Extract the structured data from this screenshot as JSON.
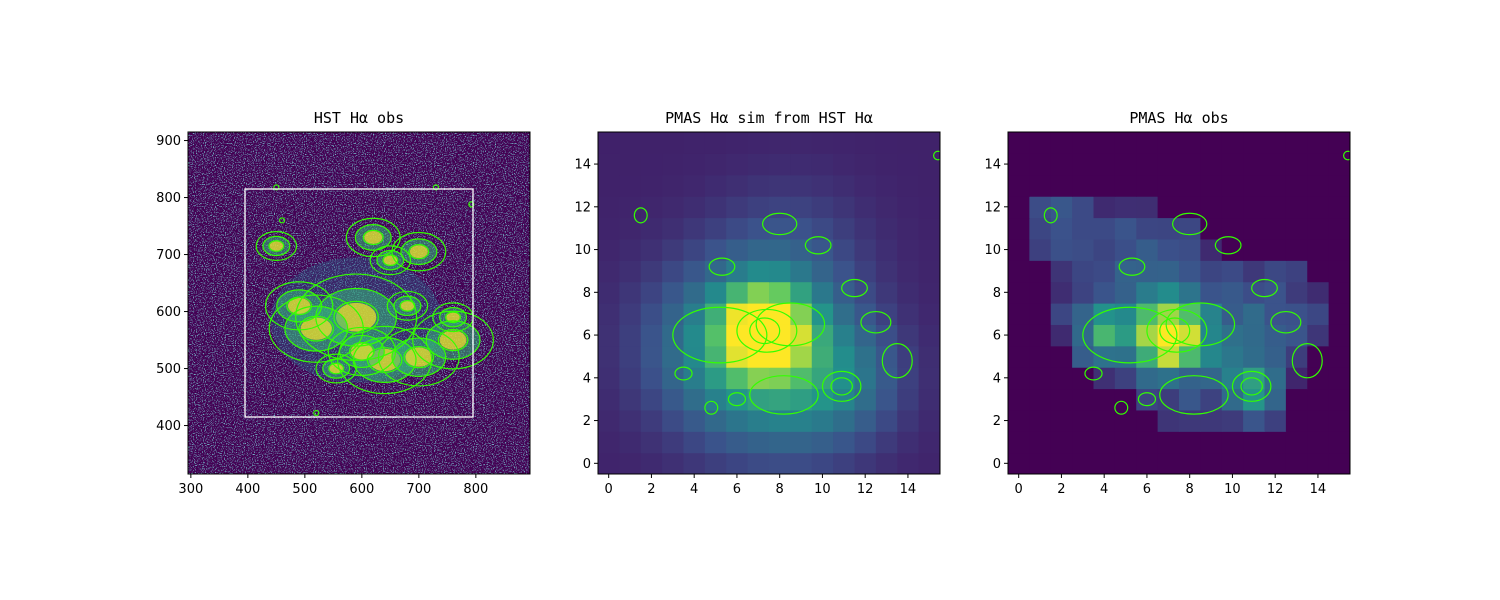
{
  "colors": {
    "contour": "#33ff00",
    "box": "#ffffff",
    "bg": "#440154"
  },
  "chart_data": [
    {
      "type": "heatmap",
      "title": "HST Hα obs",
      "xlabel": "",
      "ylabel": "",
      "xlim": [
        295,
        895
      ],
      "ylim": [
        315,
        915
      ],
      "xticks": [
        300,
        400,
        500,
        600,
        700,
        800
      ],
      "yticks": [
        400,
        500,
        600,
        700,
        800,
        900
      ],
      "grid": false,
      "overlay_box": {
        "x": [
          395,
          795
        ],
        "y": [
          415,
          815
        ]
      },
      "contour_peaks": [
        {
          "x": 590,
          "y": 590,
          "w": 9
        },
        {
          "x": 520,
          "y": 570,
          "w": 7
        },
        {
          "x": 640,
          "y": 515,
          "w": 7
        },
        {
          "x": 700,
          "y": 520,
          "w": 6
        },
        {
          "x": 760,
          "y": 550,
          "w": 6
        },
        {
          "x": 600,
          "y": 530,
          "w": 5
        },
        {
          "x": 490,
          "y": 610,
          "w": 5
        },
        {
          "x": 620,
          "y": 730,
          "w": 4
        },
        {
          "x": 700,
          "y": 705,
          "w": 4
        },
        {
          "x": 450,
          "y": 715,
          "w": 3
        },
        {
          "x": 650,
          "y": 690,
          "w": 3
        },
        {
          "x": 760,
          "y": 590,
          "w": 3
        },
        {
          "x": 680,
          "y": 610,
          "w": 3
        },
        {
          "x": 555,
          "y": 500,
          "w": 3
        }
      ]
    },
    {
      "type": "heatmap",
      "title": "PMAS Hα sim from HST Hα",
      "xlabel": "",
      "ylabel": "",
      "xlim": [
        -0.5,
        15.5
      ],
      "ylim": [
        -0.5,
        15.5
      ],
      "xticks": [
        0,
        2,
        4,
        6,
        8,
        10,
        12,
        14
      ],
      "yticks": [
        0,
        2,
        4,
        6,
        8,
        10,
        12,
        14
      ],
      "grid": false,
      "pixel_grid": [
        16,
        16
      ],
      "field_model": "smooth",
      "peaks": [
        {
          "x": 7.3,
          "y": 6.2,
          "a": 1.0,
          "s": 1.3
        },
        {
          "x": 5.5,
          "y": 5.5,
          "a": 0.35,
          "s": 2.8
        },
        {
          "x": 8.5,
          "y": 4.0,
          "a": 0.3,
          "s": 2.8
        },
        {
          "x": 11.0,
          "y": 4.0,
          "a": 0.18,
          "s": 2.0
        },
        {
          "x": 8.5,
          "y": 9.5,
          "a": 0.16,
          "s": 2.5
        }
      ]
    },
    {
      "type": "heatmap",
      "title": "PMAS Hα obs",
      "xlabel": "",
      "ylabel": "",
      "xlim": [
        -0.5,
        15.5
      ],
      "ylim": [
        -0.5,
        15.5
      ],
      "xticks": [
        0,
        2,
        4,
        6,
        8,
        10,
        12,
        14
      ],
      "yticks": [
        0,
        2,
        4,
        6,
        8,
        10,
        12,
        14
      ],
      "grid": false,
      "pixel_grid": [
        16,
        16
      ],
      "field_model": "patchy",
      "peaks": [
        {
          "x": 7.0,
          "y": 6.0,
          "a": 1.0,
          "s": 0.9
        },
        {
          "x": 4.0,
          "y": 6.0,
          "a": 0.45,
          "s": 0.9
        },
        {
          "x": 11.0,
          "y": 3.5,
          "a": 0.45,
          "s": 0.9
        },
        {
          "x": 8.0,
          "y": 5.5,
          "a": 0.3,
          "s": 2.0
        },
        {
          "x": 5.5,
          "y": 8.5,
          "a": 0.22,
          "s": 2.3
        },
        {
          "x": 1.5,
          "y": 11.5,
          "a": 0.22,
          "s": 0.9
        },
        {
          "x": 12.0,
          "y": 7.0,
          "a": 0.18,
          "s": 1.6
        }
      ]
    }
  ],
  "contours_pmas": [
    {
      "x": 7.3,
      "y": 6.2,
      "rx": 0.7,
      "ry": 0.6
    },
    {
      "x": 7.4,
      "y": 6.2,
      "rx": 1.4,
      "ry": 1.0
    },
    {
      "x": 5.2,
      "y": 6.0,
      "rx": 2.2,
      "ry": 1.3
    },
    {
      "x": 8.5,
      "y": 6.5,
      "rx": 1.6,
      "ry": 1.0
    },
    {
      "x": 8.2,
      "y": 3.2,
      "rx": 1.6,
      "ry": 0.9
    },
    {
      "x": 10.9,
      "y": 3.6,
      "rx": 0.5,
      "ry": 0.4
    },
    {
      "x": 10.9,
      "y": 3.6,
      "rx": 0.9,
      "ry": 0.7
    },
    {
      "x": 13.5,
      "y": 4.8,
      "rx": 0.7,
      "ry": 0.8
    },
    {
      "x": 12.5,
      "y": 6.6,
      "rx": 0.7,
      "ry": 0.5
    },
    {
      "x": 8.0,
      "y": 11.2,
      "rx": 0.8,
      "ry": 0.5
    },
    {
      "x": 9.8,
      "y": 10.2,
      "rx": 0.6,
      "ry": 0.4
    },
    {
      "x": 5.3,
      "y": 9.2,
      "rx": 0.6,
      "ry": 0.4
    },
    {
      "x": 1.5,
      "y": 11.6,
      "rx": 0.3,
      "ry": 0.35
    },
    {
      "x": 3.5,
      "y": 4.2,
      "rx": 0.4,
      "ry": 0.3
    },
    {
      "x": 6.0,
      "y": 3.0,
      "rx": 0.4,
      "ry": 0.3
    },
    {
      "x": 4.8,
      "y": 2.6,
      "rx": 0.3,
      "ry": 0.3
    },
    {
      "x": 15.4,
      "y": 14.4,
      "rx": 0.2,
      "ry": 0.2
    },
    {
      "x": 11.5,
      "y": 8.2,
      "rx": 0.6,
      "ry": 0.4
    }
  ]
}
